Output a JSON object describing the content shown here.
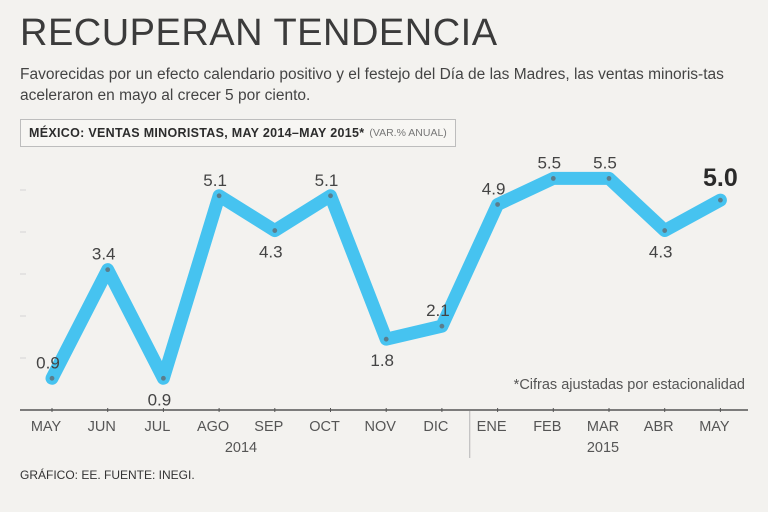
{
  "title": "RECUPERAN TENDENCIA",
  "subtitle": "Favorecidas por un efecto calendario positivo y el festejo del Día de las Madres, las ventas minoris-tas aceleraron en mayo al crecer 5 por ciento.",
  "chart_label": {
    "main": "MÉXICO: VENTAS MINORISTAS, MAY 2014–MAY 2015*",
    "unit": "(VAR.% ANUAL)"
  },
  "note": "*Cifras ajustadas por estacionalidad",
  "footer": "GRÁFICO: EE. FUENTE: INEGI.",
  "colors": {
    "line": "#46c3f0",
    "marker": "#5a7d8c",
    "grid": "#d4d4d4",
    "axis": "#555555"
  },
  "chart_data": {
    "type": "line",
    "title": "MÉXICO: VENTAS MINORISTAS, MAY 2014–MAY 2015*",
    "ylabel": "(VAR.% ANUAL)",
    "xlabel": "",
    "categories": [
      "MAY",
      "JUN",
      "JUL",
      "AGO",
      "SEP",
      "OCT",
      "NOV",
      "DIC",
      "ENE",
      "FEB",
      "MAR",
      "ABR",
      "MAY"
    ],
    "year_groups": [
      {
        "label": "2014",
        "start": 0,
        "end": 7
      },
      {
        "label": "2015",
        "start": 8,
        "end": 12
      }
    ],
    "series": [
      {
        "name": "Ventas minoristas",
        "values": [
          0.9,
          3.4,
          0.9,
          5.1,
          4.3,
          5.1,
          1.8,
          2.1,
          4.9,
          5.5,
          5.5,
          4.3,
          5.0
        ],
        "labels": [
          "0.9",
          "3.4",
          "0.9",
          "5.1",
          "4.3",
          "5.1",
          "1.8",
          "2.1",
          "4.9",
          "5.5",
          "5.5",
          "4.3",
          "5.0"
        ]
      }
    ],
    "highlight_index": 12,
    "ylim": [
      0.4,
      6.2
    ],
    "grid": true
  }
}
